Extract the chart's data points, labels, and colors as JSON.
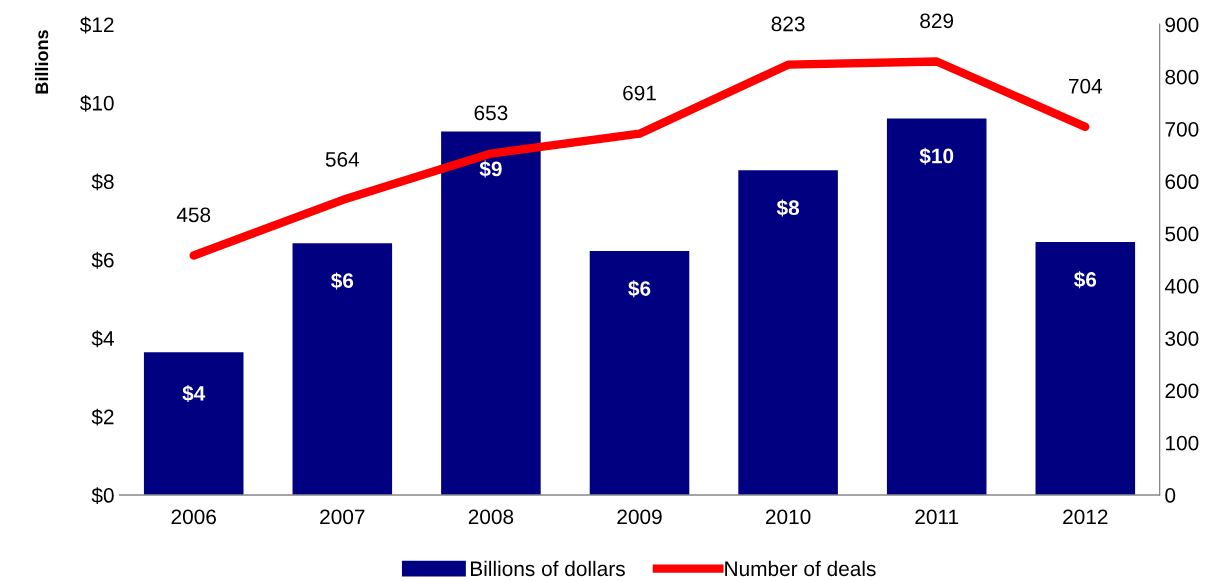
{
  "chart_data": {
    "type": "bar",
    "ylabel": "Billions",
    "categories": [
      "2006",
      "2007",
      "2008",
      "2009",
      "2010",
      "2011",
      "2012"
    ],
    "series": [
      {
        "name": "Billions of dollars",
        "color": "#000080",
        "values": [
          3.64,
          6.42,
          9.27,
          6.22,
          8.28,
          9.6,
          6.45
        ],
        "value_labels": [
          "$4",
          "$6",
          "$9",
          "$6",
          "$8",
          "$10",
          "$6"
        ]
      },
      {
        "name": "Number of deals",
        "type": "line",
        "axis": "y2",
        "color": "#ff0000",
        "values": [
          458,
          564,
          653,
          691,
          823,
          829,
          704
        ],
        "data_labels": true
      }
    ],
    "ylim": [
      0,
      12
    ],
    "yticks": [
      {
        "value": 0,
        "label": "$0"
      },
      {
        "value": 2,
        "label": "$2"
      },
      {
        "value": 4,
        "label": "$4"
      },
      {
        "value": 6,
        "label": "$6"
      },
      {
        "value": 8,
        "label": "$8"
      },
      {
        "value": 10,
        "label": "$10"
      },
      {
        "value": 12,
        "label": "$12"
      }
    ],
    "y2lim": [
      0,
      900
    ],
    "y2ticks": [
      0,
      100,
      200,
      300,
      400,
      500,
      600,
      700,
      800,
      900
    ],
    "legend": "bottom",
    "grid": false,
    "marker": "none",
    "line_style": "solid"
  }
}
